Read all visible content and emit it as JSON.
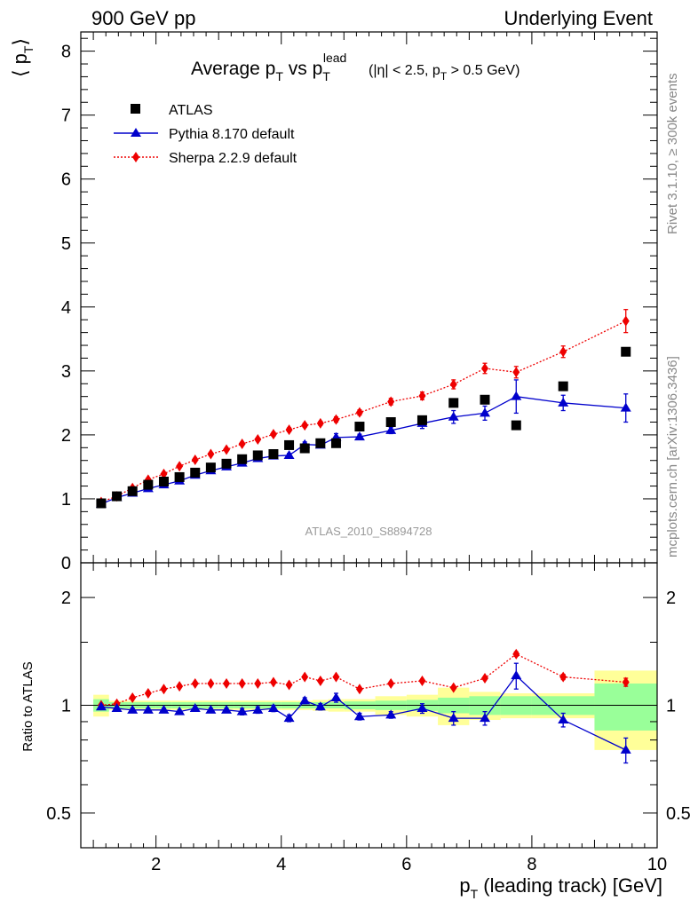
{
  "header": {
    "left": "900 GeV pp",
    "right": "Underlying Event"
  },
  "side_labels": {
    "rivet": "Rivet 3.1.10, ≥ 300k events",
    "mcplots": "mcplots.cern.ch [arXiv:1306.3436]"
  },
  "colors": {
    "atlas": "#000000",
    "pythia": "#0000cc",
    "sherpa": "#ee0000",
    "band_inner": "#99ff99",
    "band_outer": "#ffff99",
    "side_text": "#888888",
    "analysis_text": "#999999"
  },
  "chart_data": {
    "type": "scatter",
    "title_parts": {
      "main": "Average p",
      "sub_T": "T",
      "vs": " vs p",
      "sup_lead": "lead",
      "cut": "(|η| < 2.5, p",
      "cut_end": " > 0.5 GeV)"
    },
    "ylabel_parts": {
      "open": "⟨ p",
      "sub": "T",
      "close": "⟩"
    },
    "xlabel_parts": {
      "main": "p",
      "sub": "T",
      "rest": " (leading track) [GeV]"
    },
    "ratio_ylabel": "Ratio to ATLAS",
    "analysis_id": "ATLAS_2010_S8894728",
    "legend": {
      "placement": "top-left",
      "entries": [
        "ATLAS",
        "Pythia 8.170 default",
        "Sherpa 2.2.9 default"
      ]
    },
    "xlim": [
      0.8,
      10.0
    ],
    "ylim": [
      0,
      8.3
    ],
    "ratio_ylim": [
      0.4,
      2.5
    ],
    "ratio_scale": "log",
    "x_ticks": [
      "2",
      "4",
      "6",
      "8",
      "10"
    ],
    "y_ticks": [
      "0",
      "1",
      "2",
      "3",
      "4",
      "5",
      "6",
      "7",
      "8"
    ],
    "ratio_ticks": [
      "0.5",
      "1",
      "2"
    ],
    "x": [
      1.125,
      1.375,
      1.625,
      1.875,
      2.125,
      2.375,
      2.625,
      2.875,
      3.125,
      3.375,
      3.625,
      3.875,
      4.125,
      4.375,
      4.625,
      4.875,
      5.25,
      5.75,
      6.25,
      6.75,
      7.25,
      7.75,
      8.5,
      9.5
    ],
    "series": [
      {
        "name": "ATLAS",
        "values": [
          0.93,
          1.04,
          1.12,
          1.22,
          1.27,
          1.34,
          1.41,
          1.49,
          1.55,
          1.62,
          1.68,
          1.7,
          1.84,
          1.79,
          1.87,
          1.87,
          2.13,
          2.2,
          2.23,
          2.5,
          2.55,
          2.15,
          2.76,
          3.3
        ]
      },
      {
        "name": "Pythia 8.170 default",
        "values": [
          0.92,
          1.02,
          1.09,
          1.16,
          1.22,
          1.28,
          1.37,
          1.44,
          1.5,
          1.56,
          1.63,
          1.67,
          1.68,
          1.85,
          1.84,
          1.96,
          1.97,
          2.07,
          2.18,
          2.28,
          2.34,
          2.6,
          2.5,
          2.42
        ],
        "errors": [
          0.01,
          0.01,
          0.01,
          0.01,
          0.01,
          0.02,
          0.02,
          0.02,
          0.02,
          0.03,
          0.03,
          0.03,
          0.03,
          0.04,
          0.04,
          0.06,
          0.04,
          0.05,
          0.08,
          0.1,
          0.11,
          0.26,
          0.12,
          0.22
        ],
        "ratio": [
          0.99,
          0.98,
          0.97,
          0.97,
          0.97,
          0.96,
          0.98,
          0.97,
          0.97,
          0.96,
          0.97,
          0.98,
          0.92,
          1.03,
          0.99,
          1.05,
          0.93,
          0.94,
          0.98,
          0.92,
          0.92,
          1.21,
          0.91,
          0.75
        ],
        "ratio_errors": [
          0.01,
          0.01,
          0.01,
          0.01,
          0.01,
          0.01,
          0.01,
          0.01,
          0.01,
          0.02,
          0.02,
          0.02,
          0.02,
          0.02,
          0.02,
          0.03,
          0.02,
          0.02,
          0.03,
          0.04,
          0.04,
          0.1,
          0.04,
          0.06
        ]
      },
      {
        "name": "Sherpa 2.2.9 default",
        "values": [
          0.95,
          1.04,
          1.17,
          1.3,
          1.39,
          1.51,
          1.61,
          1.7,
          1.77,
          1.86,
          1.93,
          2.01,
          2.08,
          2.15,
          2.18,
          2.24,
          2.35,
          2.52,
          2.61,
          2.79,
          3.04,
          2.98,
          3.3,
          3.78
        ],
        "errors": [
          0.01,
          0.01,
          0.01,
          0.01,
          0.01,
          0.02,
          0.02,
          0.02,
          0.02,
          0.02,
          0.02,
          0.03,
          0.03,
          0.03,
          0.03,
          0.04,
          0.04,
          0.05,
          0.06,
          0.07,
          0.08,
          0.09,
          0.09,
          0.18
        ],
        "ratio": [
          1.0,
          1.01,
          1.05,
          1.08,
          1.11,
          1.13,
          1.15,
          1.15,
          1.15,
          1.15,
          1.15,
          1.16,
          1.14,
          1.2,
          1.17,
          1.2,
          1.11,
          1.15,
          1.17,
          1.12,
          1.19,
          1.39,
          1.2,
          1.16
        ],
        "ratio_errors": [
          0.005,
          0.005,
          0.005,
          0.005,
          0.005,
          0.005,
          0.005,
          0.005,
          0.005,
          0.005,
          0.005,
          0.005,
          0.005,
          0.01,
          0.01,
          0.01,
          0.01,
          0.01,
          0.01,
          0.01,
          0.01,
          0.02,
          0.02,
          0.03
        ]
      }
    ],
    "ratio_bands": {
      "edges": [
        1.0,
        1.25,
        1.5,
        1.75,
        2.0,
        2.25,
        2.5,
        2.75,
        3.0,
        3.25,
        3.5,
        3.75,
        4.0,
        4.25,
        4.5,
        4.75,
        5.0,
        5.5,
        6.0,
        6.5,
        7.0,
        7.5,
        8.0,
        9.0,
        10.0
      ],
      "inner": [
        0.04,
        0.02,
        0.02,
        0.02,
        0.02,
        0.02,
        0.02,
        0.02,
        0.02,
        0.02,
        0.02,
        0.02,
        0.02,
        0.02,
        0.02,
        0.02,
        0.025,
        0.03,
        0.035,
        0.05,
        0.06,
        0.06,
        0.06,
        0.15
      ],
      "outer": [
        0.07,
        0.03,
        0.03,
        0.03,
        0.03,
        0.03,
        0.03,
        0.03,
        0.03,
        0.03,
        0.03,
        0.03,
        0.03,
        0.03,
        0.035,
        0.04,
        0.04,
        0.06,
        0.07,
        0.12,
        0.09,
        0.08,
        0.08,
        0.25
      ]
    }
  }
}
